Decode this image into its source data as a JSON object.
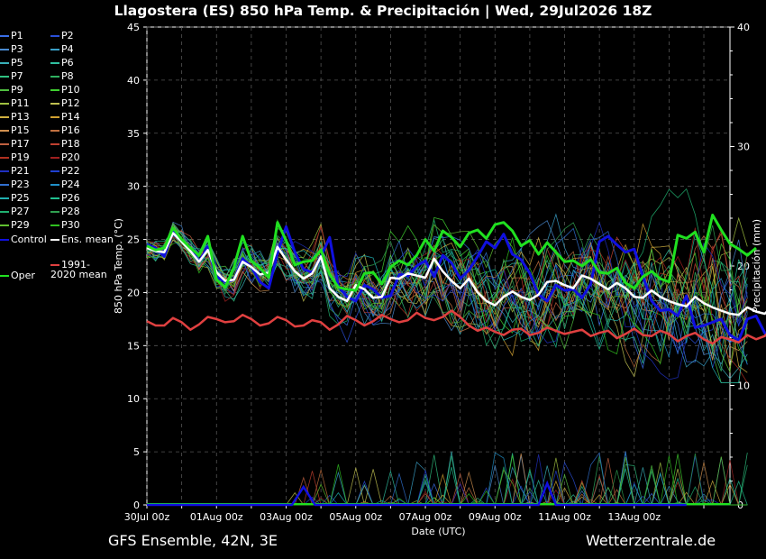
{
  "title": "Llagostera  (ES)  850 hPa Temp. & Precipitación | Wed, 29Jul2026 18Z",
  "footer": {
    "model": "GFS Ensemble, 42N, 3E",
    "site": "Wetterzentrale.de"
  },
  "legend": [
    {
      "label": "P1",
      "color": "#3a6ee8"
    },
    {
      "label": "P2",
      "color": "#2a4fd8"
    },
    {
      "label": "P3",
      "color": "#4a8ad0"
    },
    {
      "label": "P4",
      "color": "#3aa0c8"
    },
    {
      "label": "P5",
      "color": "#38b0b8"
    },
    {
      "label": "P6",
      "color": "#30c0a0"
    },
    {
      "label": "P7",
      "color": "#30c080"
    },
    {
      "label": "P8",
      "color": "#30b060"
    },
    {
      "label": "P9",
      "color": "#50c040"
    },
    {
      "label": "P10",
      "color": "#40d030"
    },
    {
      "label": "P11",
      "color": "#a0c040"
    },
    {
      "label": "P12",
      "color": "#c0c050"
    },
    {
      "label": "P13",
      "color": "#d0b040"
    },
    {
      "label": "P14",
      "color": "#d0a030"
    },
    {
      "label": "P15",
      "color": "#d09050"
    },
    {
      "label": "P16",
      "color": "#c07040"
    },
    {
      "label": "P17",
      "color": "#c06040"
    },
    {
      "label": "P18",
      "color": "#c04030"
    },
    {
      "label": "P19",
      "color": "#b03020"
    },
    {
      "label": "P20",
      "color": "#a02020"
    },
    {
      "label": "P21",
      "color": "#2030c0"
    },
    {
      "label": "P22",
      "color": "#2040d0"
    },
    {
      "label": "P23",
      "color": "#3070d0"
    },
    {
      "label": "P24",
      "color": "#2090c8"
    },
    {
      "label": "P25",
      "color": "#20b0b0"
    },
    {
      "label": "P26",
      "color": "#20c090"
    },
    {
      "label": "P27",
      "color": "#20b070"
    },
    {
      "label": "P28",
      "color": "#30a050"
    },
    {
      "label": "P29",
      "color": "#60c030"
    },
    {
      "label": "P30",
      "color": "#30c020"
    },
    {
      "label": "Control",
      "color": "#1010e0"
    },
    {
      "label": "Ens. mean",
      "color": "#ffffff"
    },
    {
      "label": "Oper",
      "color": "#20e020"
    },
    {
      "label": "1991-2020 mean",
      "color": "#e04040"
    }
  ],
  "chart_data": {
    "type": "line",
    "xlabel": "Date (UTC)",
    "ylabel": "850 hPa Temp. (°C)",
    "y2label": "Precipitación (mm)",
    "ylim": [
      0,
      45
    ],
    "y2lim": [
      0,
      40
    ],
    "yticks": [
      "0",
      "5",
      "10",
      "15",
      "20",
      "25",
      "30",
      "35",
      "40",
      "45"
    ],
    "y2ticks": [
      "0",
      "10",
      "20",
      "30",
      "40"
    ],
    "xticks": [
      "30Jul 00z",
      "01Aug 00z",
      "03Aug 00z",
      "05Aug 00z",
      "07Aug 00z",
      "09Aug 00z",
      "11Aug 00z",
      "13Aug 00z"
    ],
    "x_step_hours": 6,
    "grid": true,
    "series": [
      {
        "name": "Control",
        "color": "#1010e0",
        "values": [
          24.5,
          24.2,
          23.4,
          25.8,
          24.9,
          24.1,
          22.9,
          24.3,
          21.5,
          21.0,
          21.2,
          23.2,
          22.4,
          21.0,
          20.4,
          23.7,
          26.2,
          23.8,
          22.2,
          21.9,
          23.4,
          25.2,
          20.6,
          19.6,
          19.2,
          20.7,
          20.3,
          19.5,
          19.7,
          21.7,
          21.6,
          22.5,
          23.0,
          21.5,
          23.5,
          22.8,
          21.3,
          22.1,
          23.4,
          24.8,
          24.2,
          25.5,
          23.6,
          23.1,
          21.8,
          19.8,
          19.2,
          20.7,
          20.2,
          20.3,
          19.5,
          20.8,
          24.8,
          25.3,
          24.5,
          23.8,
          24.1,
          21.5,
          19.2,
          18.3,
          18.4,
          17.8,
          19.7,
          16.7,
          16.9,
          17.2,
          17.5,
          16.0,
          15.5,
          17.5,
          17.8,
          16.2,
          15.0,
          18.2,
          17.5,
          15.8,
          16.2,
          18.5
        ]
      },
      {
        "name": "Ens. mean",
        "color": "#ffffff",
        "values": [
          24.2,
          23.9,
          23.8,
          25.6,
          24.8,
          23.9,
          22.9,
          24.0,
          21.9,
          21.1,
          21.2,
          22.9,
          22.4,
          21.7,
          21.9,
          24.3,
          23.1,
          22.0,
          21.3,
          21.8,
          23.4,
          20.4,
          19.6,
          19.2,
          20.7,
          20.3,
          19.5,
          19.6,
          21.4,
          21.3,
          21.8,
          21.6,
          21.4,
          23.2,
          22.0,
          21.1,
          20.4,
          21.3,
          20.0,
          19.2,
          18.8,
          19.6,
          20.1,
          19.6,
          19.3,
          19.8,
          21.0,
          21.1,
          20.7,
          20.4,
          21.6,
          21.3,
          20.8,
          20.3,
          20.9,
          20.4,
          19.6,
          19.5,
          20.2,
          19.6,
          19.2,
          18.9,
          18.7,
          19.6,
          19.0,
          18.6,
          18.3,
          18.0,
          17.9,
          18.6,
          18.2,
          18.0,
          18.8,
          19.3
        ]
      },
      {
        "name": "Oper",
        "color": "#20e020",
        "values": [
          24.4,
          24.0,
          24.2,
          26.1,
          25.0,
          24.2,
          23.5,
          25.3,
          21.2,
          20.5,
          22.4,
          25.3,
          23.0,
          22.3,
          21.4,
          26.6,
          24.9,
          22.6,
          22.9,
          23.0,
          24.0,
          21.7,
          20.5,
          20.3,
          20.2,
          21.8,
          21.9,
          20.8,
          22.4,
          23.0,
          22.6,
          23.5,
          25.0,
          23.9,
          25.8,
          25.2,
          24.3,
          25.6,
          25.9,
          25.1,
          26.4,
          26.6,
          25.8,
          24.4,
          24.9,
          23.6,
          24.7,
          23.8,
          22.9,
          23.0,
          22.5,
          23.1,
          21.9,
          21.8,
          22.3,
          20.9,
          20.4,
          21.5,
          22.0,
          21.3,
          21.0,
          25.4,
          25.1,
          25.7,
          23.8,
          27.3,
          25.9,
          24.6,
          24.1,
          23.5,
          24.2
        ]
      },
      {
        "name": "1991-2020 mean",
        "color": "#e04040",
        "values": [
          17.3,
          16.9,
          16.9,
          17.6,
          17.2,
          16.5,
          17.0,
          17.7,
          17.5,
          17.2,
          17.3,
          17.9,
          17.5,
          16.9,
          17.1,
          17.7,
          17.4,
          16.8,
          16.9,
          17.4,
          17.2,
          16.5,
          17.0,
          17.8,
          17.4,
          16.9,
          17.3,
          17.9,
          17.5,
          17.2,
          17.4,
          18.1,
          17.6,
          17.4,
          17.7,
          18.3,
          17.7,
          16.9,
          16.4,
          16.7,
          16.3,
          16.0,
          16.5,
          16.6,
          16.0,
          16.2,
          16.7,
          16.4,
          16.1,
          16.3,
          16.5,
          15.9,
          16.2,
          16.4,
          15.7,
          16.1,
          16.6,
          16.0,
          15.9,
          16.4,
          16.1,
          15.4,
          15.9,
          16.2,
          15.6,
          15.2,
          15.8,
          15.6,
          15.3,
          16.0,
          15.6,
          15.9,
          16.8
        ]
      }
    ],
    "members_ranges": {
      "P1-P30": [
        12,
        31
      ]
    }
  }
}
